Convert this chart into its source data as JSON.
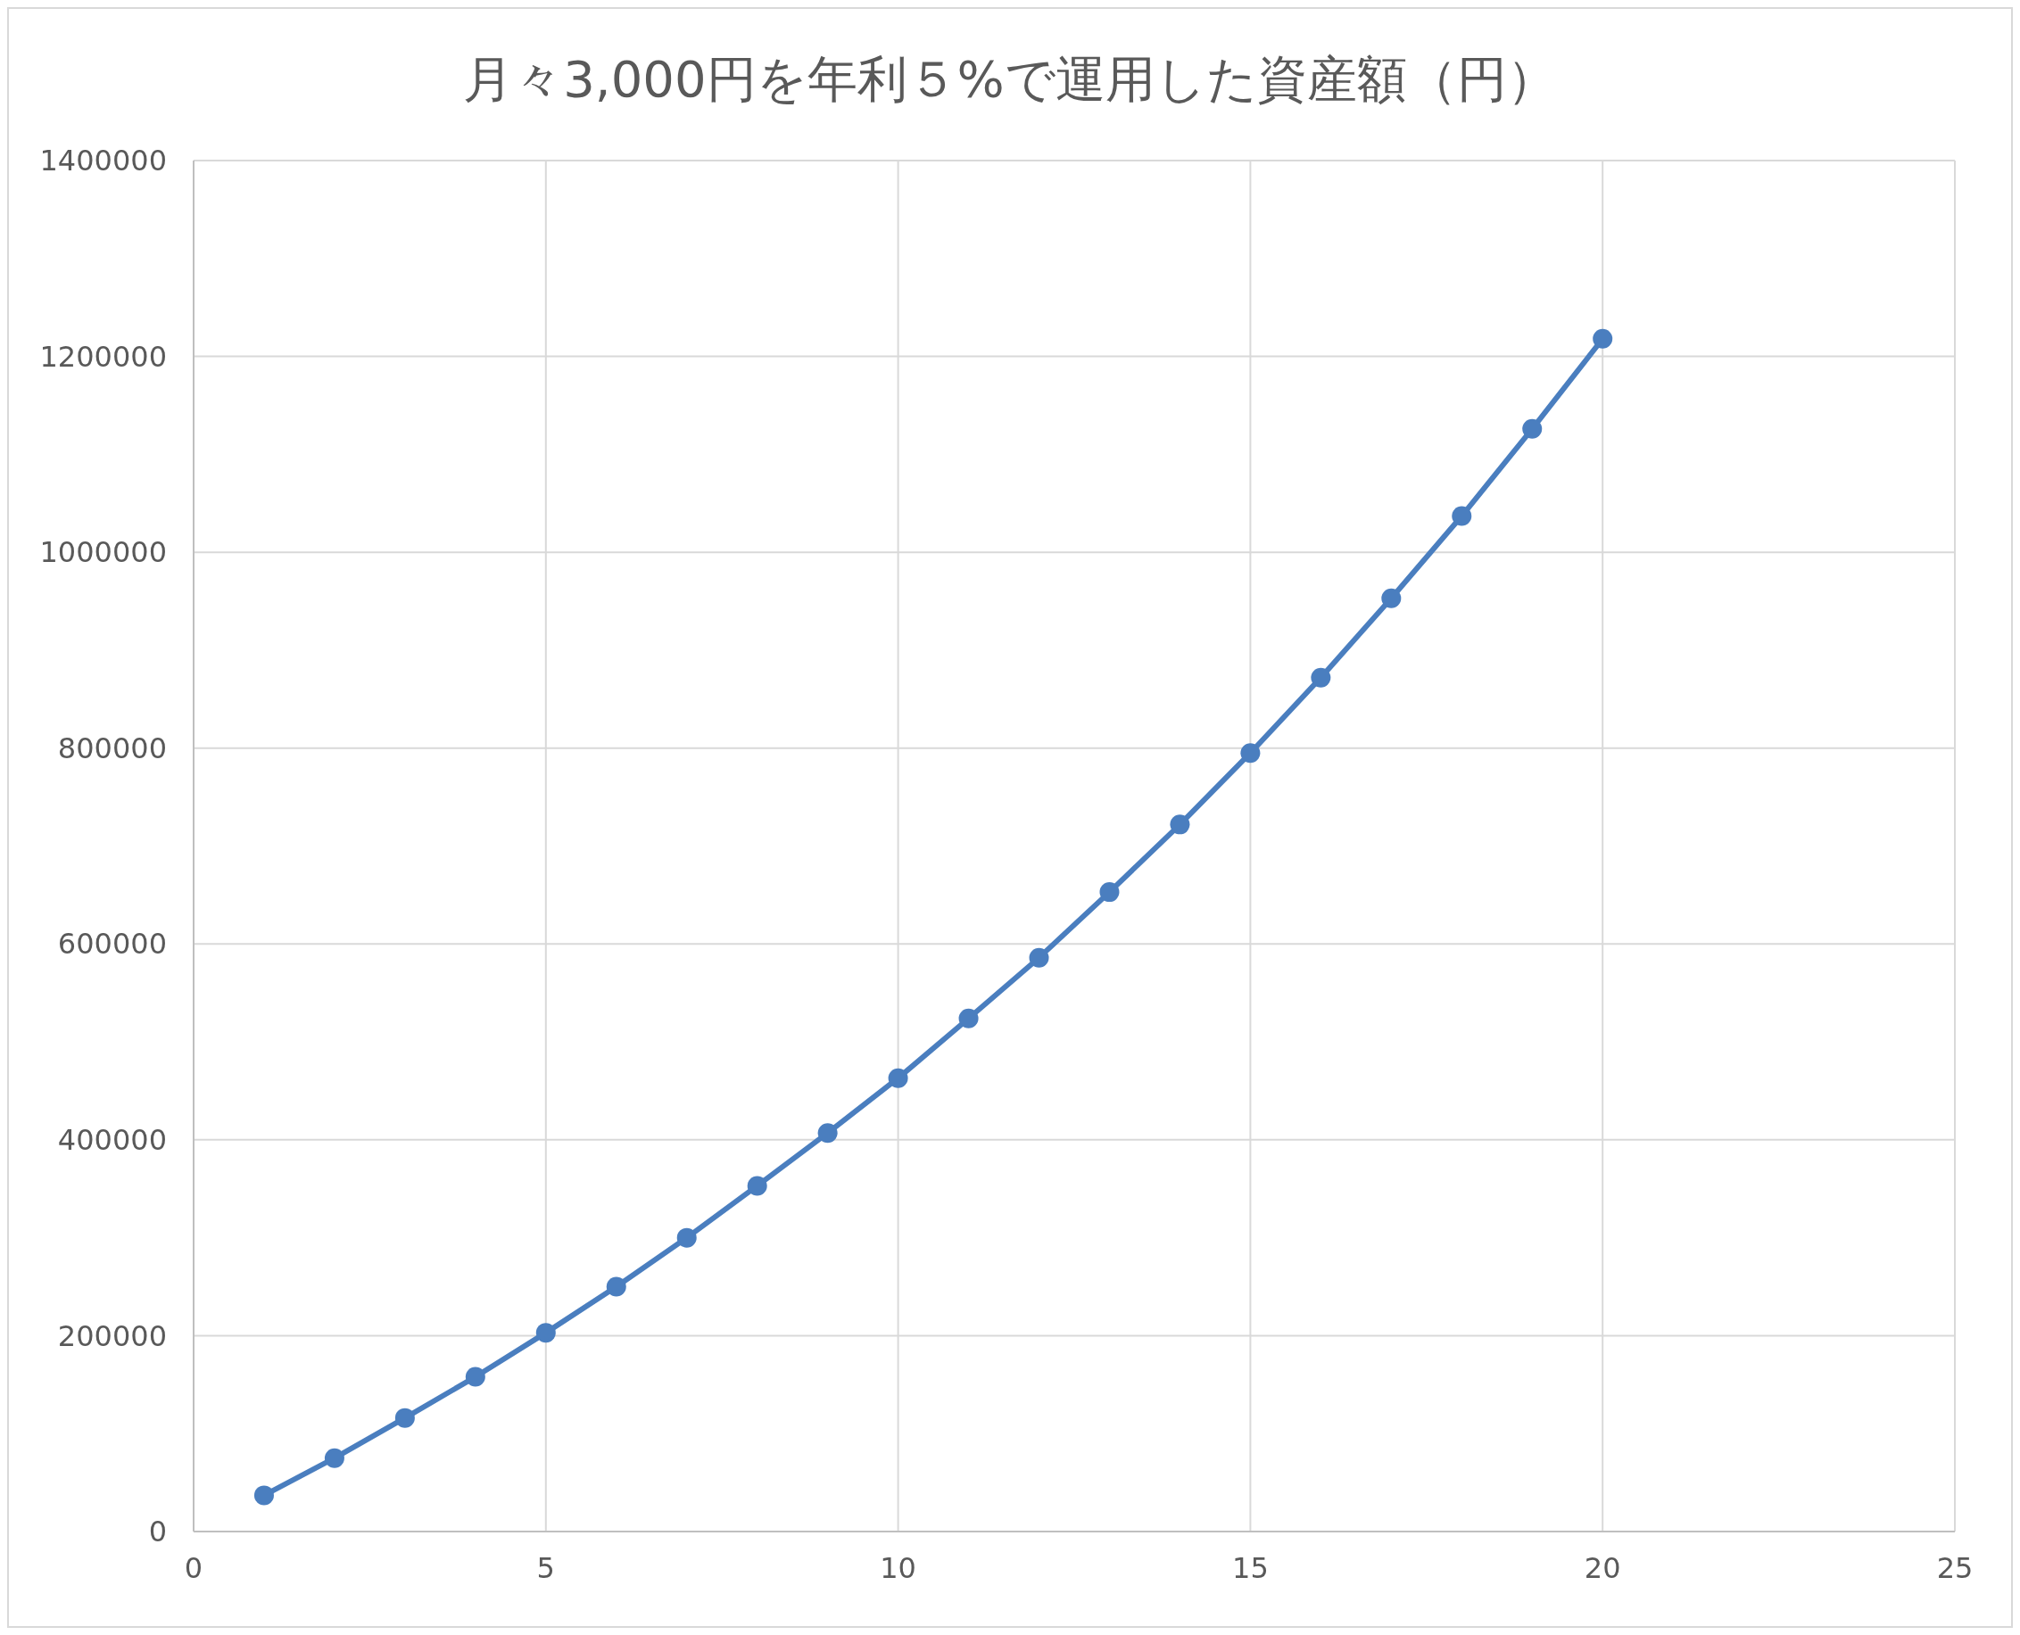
{
  "chart_data": {
    "type": "line",
    "title": "月々3,000円を年利５%で運用した資産額（円）",
    "x": [
      1,
      2,
      3,
      4,
      5,
      6,
      7,
      8,
      9,
      10,
      11,
      12,
      13,
      14,
      15,
      16,
      17,
      18,
      19,
      20
    ],
    "series": [
      {
        "color": "#4a7ebf",
        "values": [
          37000,
          75000,
          116000,
          158000,
          203000,
          250000,
          300000,
          353000,
          407000,
          463000,
          524000,
          586000,
          653000,
          722000,
          795000,
          872000,
          953000,
          1037000,
          1126000,
          1218000
        ]
      }
    ],
    "xlim": [
      0,
      25
    ],
    "xticks": [
      0,
      5,
      10,
      15,
      20,
      25
    ],
    "ylim": [
      0,
      1400000
    ],
    "yticks": [
      0,
      200000,
      400000,
      600000,
      800000,
      1000000,
      1200000,
      1400000
    ],
    "grid": true,
    "marker": "circle",
    "line_style": "solid"
  }
}
